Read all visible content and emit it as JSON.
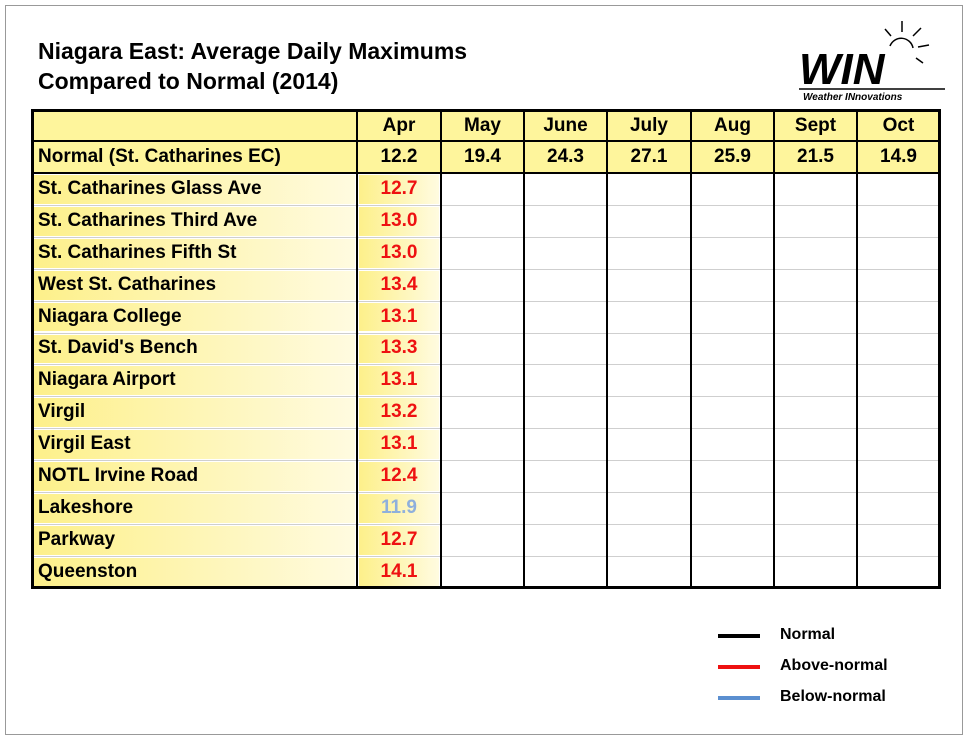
{
  "header": {
    "title_lines": [
      "Niagara East: Average Daily Maximums",
      "Compared to Normal (2014)"
    ]
  },
  "logo": {
    "mark": "WIN",
    "tagline": "Weather INnovations"
  },
  "table": {
    "columns": [
      "Apr",
      "May",
      "June",
      "July",
      "Aug",
      "Sept",
      "Oct"
    ],
    "normal": {
      "name": "Normal (St. Catharines EC)",
      "values": [
        "12.2",
        "19.4",
        "24.3",
        "27.1",
        "25.9",
        "21.5",
        "14.9"
      ]
    },
    "rows": [
      {
        "name": "St. Catharines Glass Ave",
        "values": [
          "12.7"
        ],
        "color": "#ee1111"
      },
      {
        "name": "St. Catharines Third Ave",
        "values": [
          "13.0"
        ],
        "color": "#ee1111"
      },
      {
        "name": "St. Catharines Fifth St",
        "values": [
          "13.0"
        ],
        "color": "#ee1111"
      },
      {
        "name": "West St. Catharines",
        "values": [
          "13.4"
        ],
        "color": "#ee1111"
      },
      {
        "name": "Niagara College",
        "values": [
          "13.1"
        ],
        "color": "#ee1111"
      },
      {
        "name": "St. David's Bench",
        "values": [
          "13.3"
        ],
        "color": "#ee1111"
      },
      {
        "name": "Niagara Airport",
        "values": [
          "13.1"
        ],
        "color": "#ee1111"
      },
      {
        "name": "Virgil",
        "values": [
          "13.2"
        ],
        "color": "#ee1111"
      },
      {
        "name": "Virgil East",
        "values": [
          "13.1"
        ],
        "color": "#ee1111"
      },
      {
        "name": "NOTL Irvine Road",
        "values": [
          "12.4"
        ],
        "color": "#ee1111"
      },
      {
        "name": "Lakeshore",
        "values": [
          "11.9"
        ],
        "color": "#8fb0dc"
      },
      {
        "name": "Parkway",
        "values": [
          "12.7"
        ],
        "color": "#ee1111"
      },
      {
        "name": "Queenston",
        "values": [
          "14.1"
        ],
        "color": "#ee1111"
      }
    ]
  },
  "legend": [
    {
      "label": "Normal",
      "color": "#000000"
    },
    {
      "label": "Above-normal",
      "color": "#ee1111"
    },
    {
      "label": "Below-normal",
      "color": "#5b8fd0"
    }
  ]
}
